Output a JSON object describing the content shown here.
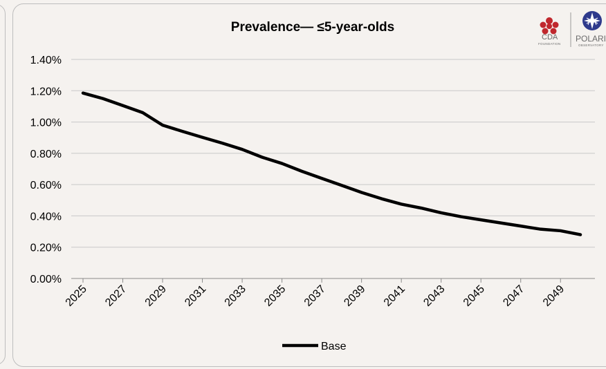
{
  "chart_data": {
    "type": "line",
    "title": "Prevalence— ≤5-year-olds",
    "xlabel": "",
    "ylabel": "",
    "x": [
      2025,
      2026,
      2027,
      2028,
      2029,
      2030,
      2031,
      2032,
      2033,
      2034,
      2035,
      2036,
      2037,
      2038,
      2039,
      2040,
      2041,
      2042,
      2043,
      2044,
      2045,
      2046,
      2047,
      2048,
      2049,
      2050
    ],
    "x_tick_labels": [
      "2025",
      "2027",
      "2029",
      "2031",
      "2033",
      "2035",
      "2037",
      "2039",
      "2041",
      "2043",
      "2045",
      "2047",
      "2049"
    ],
    "y_tick_labels": [
      "0.00%",
      "0.20%",
      "0.40%",
      "0.60%",
      "0.80%",
      "1.00%",
      "1.20%",
      "1.40%"
    ],
    "ylim": [
      0,
      0.014
    ],
    "grid": "horizontal",
    "legend": "bottom",
    "series": [
      {
        "name": "Base",
        "color": "#000000",
        "values": [
          0.01185,
          0.0115,
          0.01105,
          0.0106,
          0.0098,
          0.0094,
          0.00902,
          0.00865,
          0.00825,
          0.00775,
          0.00735,
          0.00685,
          0.0064,
          0.00595,
          0.0055,
          0.0051,
          0.00475,
          0.0045,
          0.0042,
          0.00395,
          0.00375,
          0.00355,
          0.00335,
          0.00315,
          0.00305,
          0.0028
        ]
      }
    ]
  },
  "logos": {
    "left": {
      "name": "CDA",
      "sub": "FOUNDATION"
    },
    "right": {
      "name": "POLARIS",
      "sub": "OBSERVATORY"
    }
  }
}
